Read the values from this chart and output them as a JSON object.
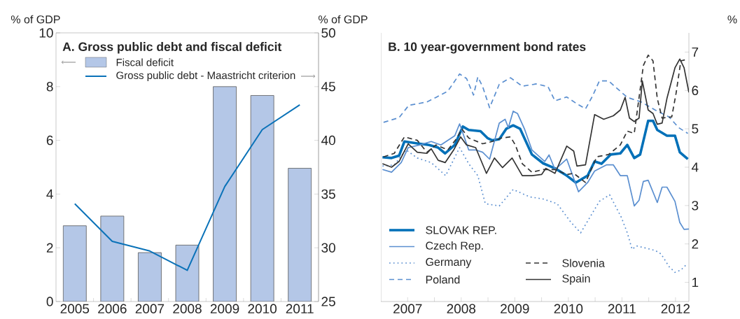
{
  "chart_data": [
    {
      "type": "bar",
      "title": "A. Gross public debt and fiscal deficit",
      "ylabel": "% of GDP",
      "y2label": "% of GDP",
      "categories": [
        "2005",
        "2006",
        "2007",
        "2008",
        "2009",
        "2010",
        "2011"
      ],
      "series": [
        {
          "name": "Fiscal deficit",
          "color": "#b4c7e7",
          "values": [
            2.82,
            3.18,
            1.82,
            2.1,
            8.0,
            7.67,
            4.96
          ]
        },
        {
          "name": "Gross public debt - Maastricht criterion",
          "type": "line",
          "axis": "y2",
          "color": "#0a72b8",
          "values": [
            34.1,
            30.6,
            29.7,
            27.9,
            35.7,
            41.0,
            43.3
          ]
        }
      ],
      "ylim": [
        0,
        10
      ],
      "yticks": [
        0,
        2,
        4,
        6,
        8,
        10
      ],
      "y2lim": [
        25,
        50
      ],
      "y2ticks": [
        25,
        30,
        35,
        40,
        45,
        50
      ],
      "legend": "top left"
    },
    {
      "type": "line",
      "title": "B. 10 year-government bond rates",
      "ylabel": "%",
      "series": [
        {
          "name": "SLOVAK REP.",
          "color": "#0070b8",
          "line_style": "solid",
          "x": [
            2007.03,
            2007.2,
            2007.34,
            2007.44,
            2007.68,
            2007.9,
            2008.07,
            2008.2,
            2008.38,
            2008.53,
            2008.64,
            2008.86,
            2008.99,
            2009.08,
            2009.21,
            2009.34,
            2009.47,
            2009.6,
            2009.82,
            2010.03,
            2010.25,
            2010.47,
            2010.64,
            2010.86,
            2010.99,
            2011.12,
            2011.29,
            2011.47,
            2011.6,
            2011.73,
            2011.84,
            2011.99,
            2012.08,
            2012.16,
            2012.34,
            2012.49,
            2012.58,
            2012.73
          ],
          "values": [
            4.26,
            4.24,
            4.3,
            4.67,
            4.62,
            4.58,
            4.51,
            4.36,
            4.58,
            5.06,
            4.97,
            4.94,
            4.76,
            4.7,
            4.73,
            5.0,
            5.09,
            5.0,
            4.33,
            4.1,
            3.97,
            3.78,
            3.6,
            3.78,
            4.15,
            4.09,
            4.33,
            4.36,
            4.58,
            4.24,
            4.33,
            5.21,
            5.21,
            4.97,
            4.82,
            4.82,
            4.39,
            4.21
          ]
        },
        {
          "name": "Czech Rep.",
          "color": "#5b8fd0",
          "line_style": "solid",
          "x": [
            2007.03,
            2007.2,
            2007.38,
            2007.51,
            2007.73,
            2007.94,
            2008.12,
            2008.25,
            2008.38,
            2008.47,
            2008.64,
            2008.77,
            2008.9,
            2009.03,
            2009.21,
            2009.32,
            2009.38,
            2009.47,
            2009.55,
            2009.68,
            2009.82,
            2010.06,
            2010.14,
            2010.25,
            2010.47,
            2010.69,
            2010.86,
            2010.99,
            2011.21,
            2011.34,
            2011.47,
            2011.6,
            2011.73,
            2011.82,
            2011.9,
            2011.99,
            2012.16,
            2012.25,
            2012.34,
            2012.49,
            2012.58,
            2012.66,
            2012.75
          ],
          "values": [
            3.94,
            3.87,
            4.12,
            4.51,
            4.58,
            4.67,
            4.58,
            4.7,
            4.82,
            5.13,
            4.45,
            4.45,
            4.39,
            4.21,
            5.15,
            5.25,
            5.03,
            5.46,
            5.4,
            5.0,
            4.45,
            4.15,
            4.32,
            3.94,
            4.21,
            3.36,
            3.6,
            3.9,
            4.06,
            4.06,
            3.78,
            3.78,
            2.99,
            3.14,
            3.63,
            3.66,
            3.08,
            3.48,
            3.48,
            3.11,
            2.56,
            2.38,
            2.39
          ]
        },
        {
          "name": "Germany",
          "color": "#5b8fd0",
          "line_style": "dotted",
          "x": [
            2007.03,
            2007.25,
            2007.47,
            2007.68,
            2007.94,
            2008.21,
            2008.47,
            2008.64,
            2008.81,
            2008.95,
            2009.21,
            2009.47,
            2009.77,
            2010.03,
            2010.29,
            2010.55,
            2010.73,
            2010.9,
            2011.08,
            2011.27,
            2011.49,
            2011.6,
            2011.69,
            2011.77,
            2011.95,
            2012.12,
            2012.23,
            2012.38,
            2012.49,
            2012.6,
            2012.71
          ],
          "values": [
            4.03,
            4.06,
            4.45,
            4.24,
            4.12,
            3.78,
            4.51,
            4.09,
            3.78,
            3.05,
            2.99,
            3.42,
            3.23,
            3.17,
            3.05,
            2.56,
            2.29,
            2.69,
            3.11,
            3.28,
            2.69,
            2.29,
            1.86,
            1.95,
            1.89,
            1.83,
            1.74,
            1.41,
            1.26,
            1.32,
            1.47
          ]
        },
        {
          "name": "Poland",
          "color": "#5b8fd0",
          "line_style": "dashed",
          "x": [
            2007.05,
            2007.34,
            2007.52,
            2007.86,
            2008.03,
            2008.25,
            2008.47,
            2008.6,
            2008.73,
            2008.81,
            2008.9,
            2009.03,
            2009.21,
            2009.42,
            2009.64,
            2009.9,
            2010.12,
            2010.25,
            2010.47,
            2010.64,
            2010.82,
            2010.95,
            2011.08,
            2011.25,
            2011.42,
            2011.6,
            2011.86,
            2012.12,
            2012.38,
            2012.56,
            2012.73
          ],
          "values": [
            5.17,
            5.29,
            5.61,
            5.7,
            5.82,
            5.98,
            6.43,
            6.31,
            5.88,
            6.35,
            6.1,
            5.55,
            6.16,
            6.33,
            6.11,
            6.17,
            6.1,
            5.73,
            5.83,
            5.67,
            5.52,
            5.85,
            6.25,
            6.25,
            6.04,
            5.82,
            5.7,
            5.49,
            5.31,
            5.03,
            4.88
          ]
        },
        {
          "name": "Slovenia",
          "color": "#333333",
          "line_style": "dashed",
          "x": [
            2007.05,
            2007.25,
            2007.44,
            2007.68,
            2007.86,
            2008.03,
            2008.25,
            2008.42,
            2008.51,
            2008.64,
            2008.9,
            2009.08,
            2009.25,
            2009.42,
            2009.51,
            2009.64,
            2009.82,
            2010.03,
            2010.25,
            2010.47,
            2010.6,
            2010.82,
            2011.03,
            2011.25,
            2011.47,
            2011.6,
            2011.73,
            2011.9,
            2011.99,
            2012.08,
            2012.16,
            2012.25,
            2012.43,
            2012.51,
            2012.6,
            2012.69
          ],
          "values": [
            4.27,
            4.36,
            4.79,
            4.7,
            4.39,
            4.58,
            4.45,
            4.76,
            5.0,
            4.76,
            4.61,
            4.67,
            4.76,
            4.79,
            4.58,
            4.09,
            3.87,
            3.94,
            3.94,
            3.81,
            3.84,
            3.6,
            4.27,
            4.33,
            4.58,
            4.94,
            4.88,
            6.65,
            6.92,
            6.77,
            5.79,
            5.28,
            5.31,
            5.92,
            6.77,
            6.8
          ]
        },
        {
          "name": "Spain",
          "color": "#333333",
          "line_style": "solid",
          "x": [
            2007.03,
            2007.2,
            2007.34,
            2007.51,
            2007.68,
            2007.86,
            2007.94,
            2008.07,
            2008.2,
            2008.36,
            2008.49,
            2008.6,
            2008.77,
            2008.97,
            2009.12,
            2009.27,
            2009.45,
            2009.64,
            2009.82,
            2010.0,
            2010.08,
            2010.25,
            2010.47,
            2010.6,
            2010.66,
            2010.82,
            2010.99,
            2011.16,
            2011.34,
            2011.47,
            2011.56,
            2011.64,
            2011.73,
            2011.82,
            2011.88,
            2011.99,
            2012.08,
            2012.16,
            2012.25,
            2012.34,
            2012.49,
            2012.58,
            2012.66,
            2012.75
          ],
          "values": [
            4.09,
            4.0,
            4.15,
            4.61,
            4.39,
            4.36,
            4.48,
            4.18,
            4.12,
            4.45,
            4.79,
            4.58,
            4.51,
            3.84,
            4.24,
            3.99,
            4.24,
            3.78,
            3.78,
            3.81,
            3.97,
            3.84,
            4.55,
            4.42,
            4.03,
            4.06,
            5.37,
            5.25,
            5.34,
            5.49,
            5.82,
            5.28,
            5.19,
            5.28,
            6.25,
            5.49,
            5.4,
            5.12,
            5.15,
            5.79,
            6.59,
            6.82,
            6.59,
            5.95
          ]
        }
      ],
      "xlim": [
        2007.0,
        2012.75
      ],
      "xticks": [
        {
          "value": 2007.5,
          "label": "2007"
        },
        {
          "value": 2008,
          "label": null
        },
        {
          "value": 2008.5,
          "label": "2008"
        },
        {
          "value": 2009,
          "label": null
        },
        {
          "value": 2009.5,
          "label": "2009"
        },
        {
          "value": 2010,
          "label": null
        },
        {
          "value": 2010.5,
          "label": "2010"
        },
        {
          "value": 2011,
          "label": null
        },
        {
          "value": 2011.5,
          "label": "2011"
        },
        {
          "value": 2012,
          "label": null
        },
        {
          "value": 2012.5,
          "label": "2012"
        }
      ],
      "ylim": [
        0.5,
        7.5
      ],
      "yticks": [
        1,
        2,
        3,
        4,
        5,
        6,
        7
      ],
      "legend": "bottom left"
    }
  ]
}
